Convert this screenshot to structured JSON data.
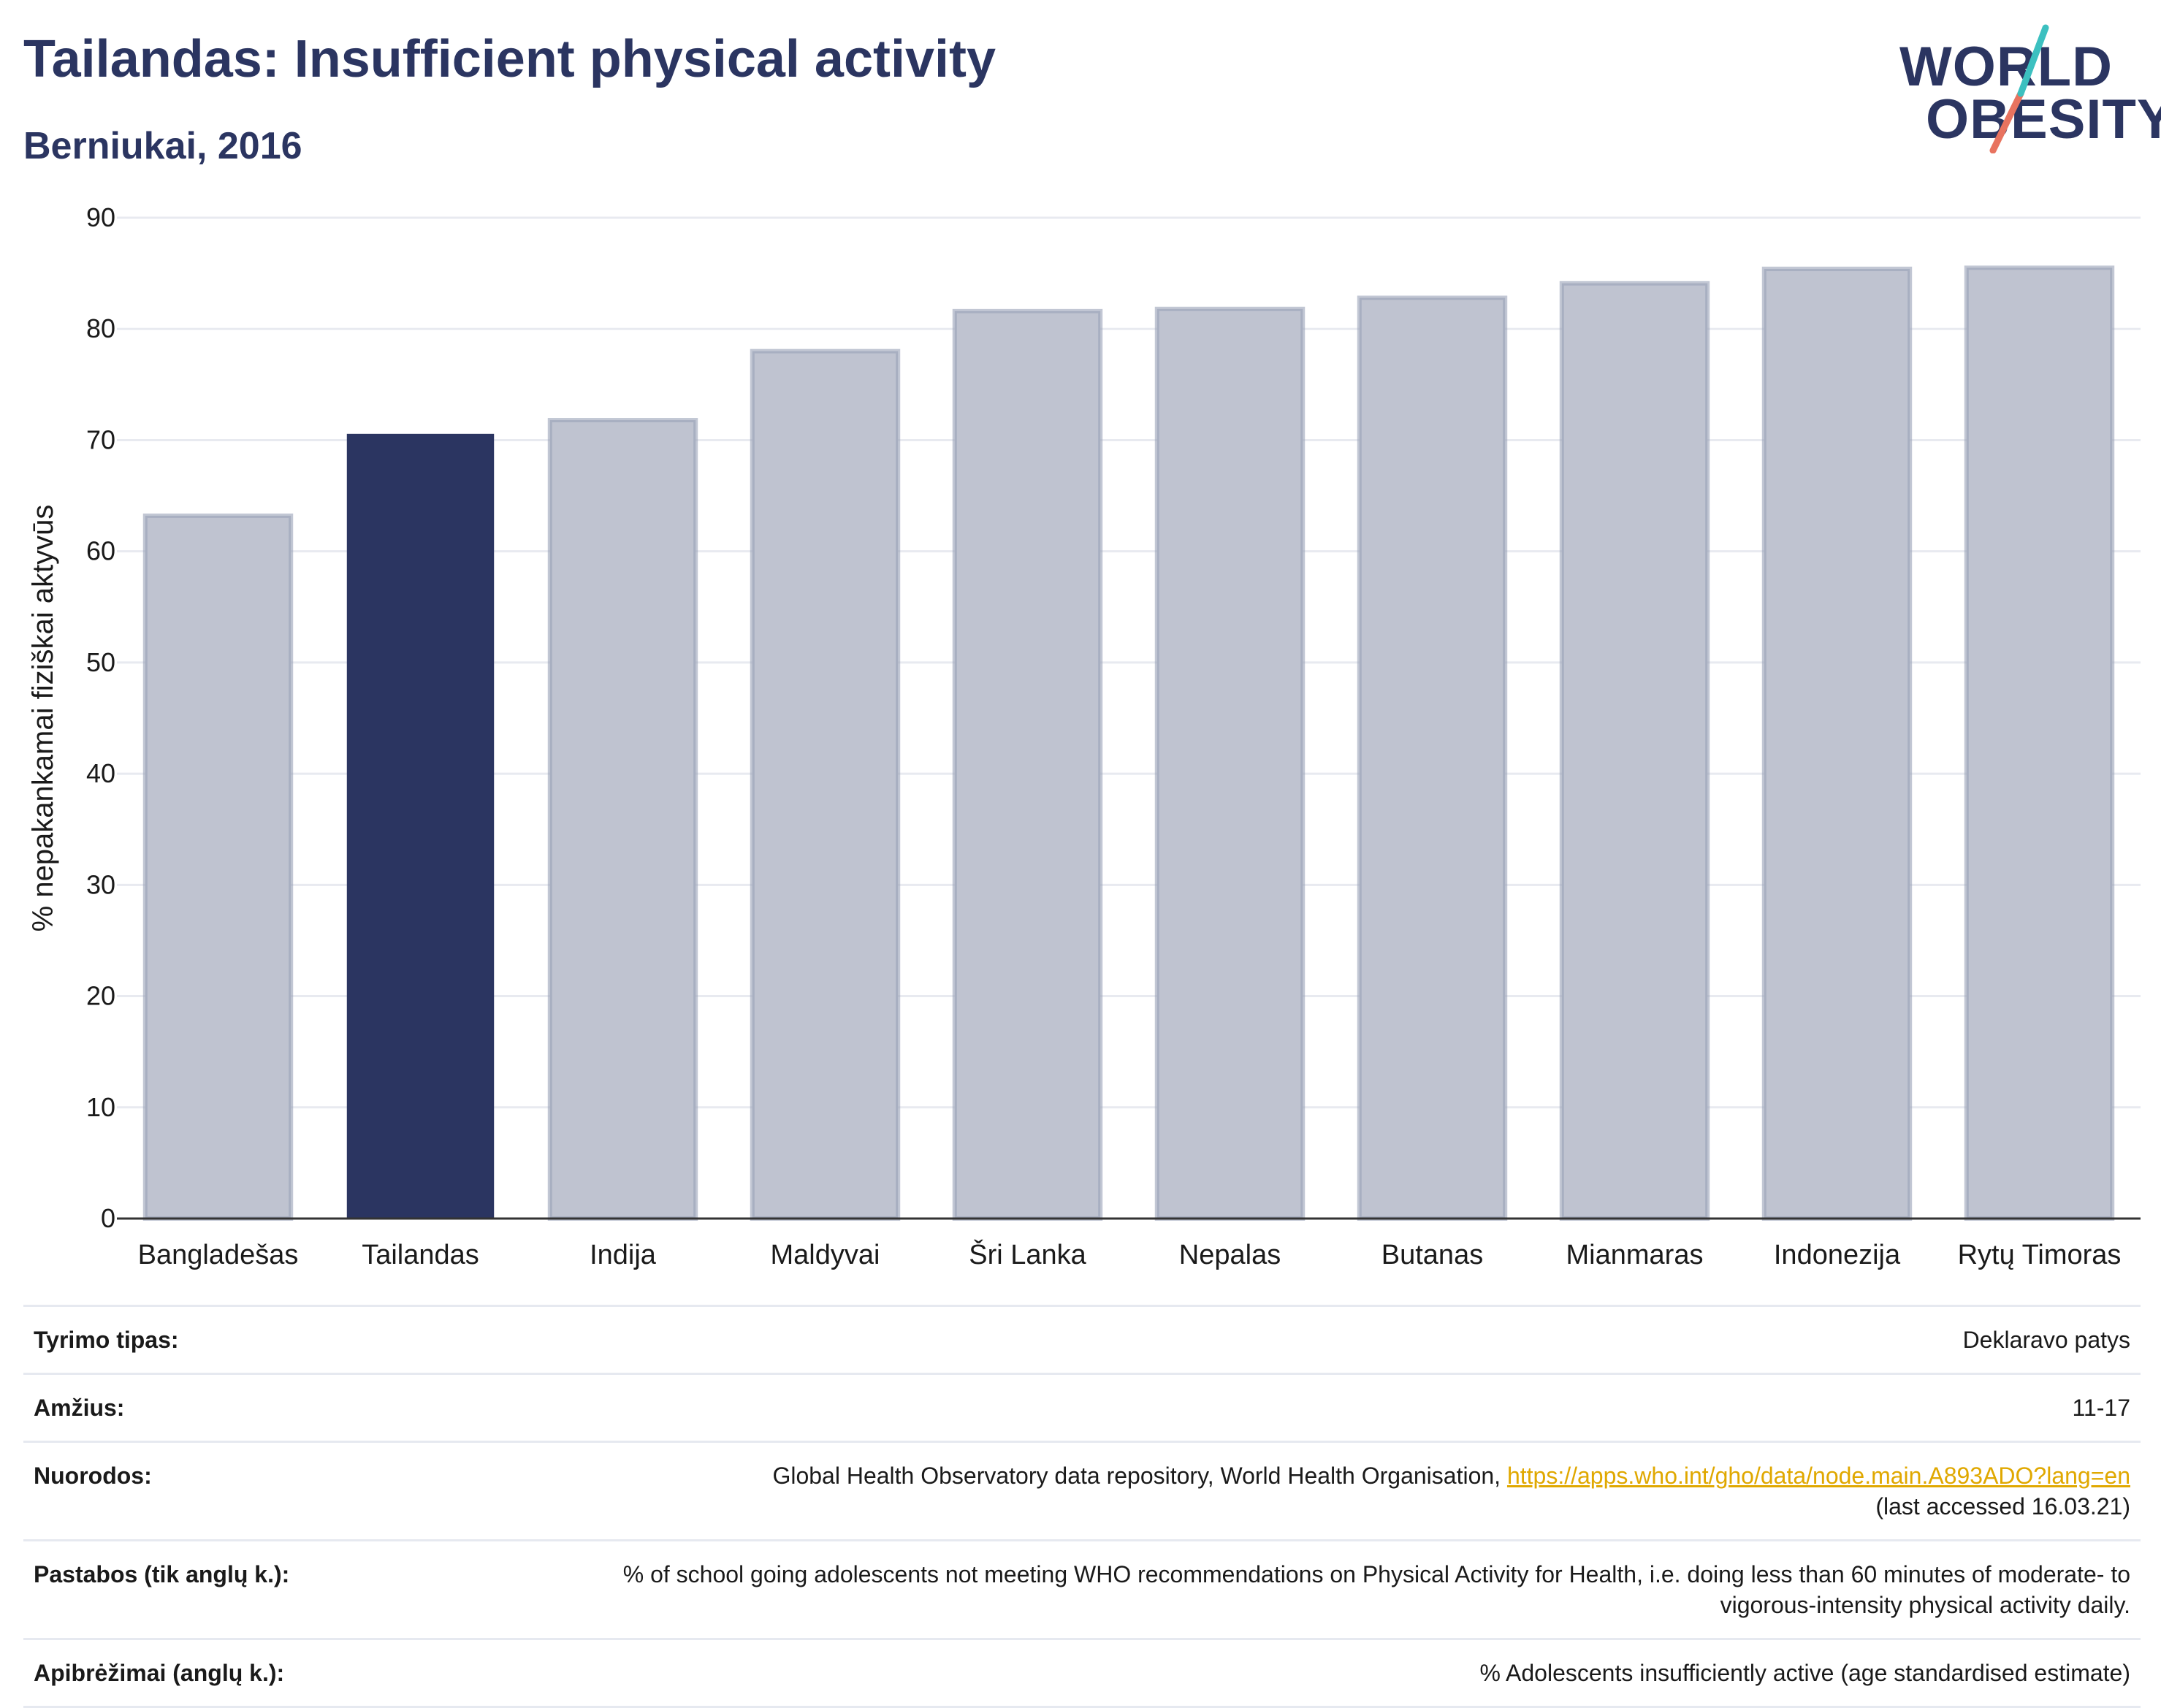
{
  "header": {
    "title": "Tailandas: Insufficient physical activity",
    "subtitle": "Berniukai, 2016"
  },
  "logo": {
    "line1": "WORLD",
    "line2": "OBESITY"
  },
  "colors": {
    "highlight": "#2b3561",
    "other": "#bfc3d0",
    "other_stroke": "#9aa1b8",
    "grid": "#e8eaf0",
    "accent_teal": "#3cc0c0",
    "accent_coral": "#e8735f"
  },
  "chart_data": {
    "type": "bar",
    "title": "Tailandas: Insufficient physical activity",
    "subtitle": "Berniukai, 2016",
    "ylabel": "% nepakankamai fiziškai aktyvūs",
    "xlabel": "",
    "ylim": [
      0,
      90
    ],
    "yticks": [
      0,
      10,
      20,
      30,
      40,
      50,
      60,
      70,
      80,
      90
    ],
    "categories": [
      "Bangladešas",
      "Tailandas",
      "Indija",
      "Maldyvai",
      "Šri Lanka",
      "Nepalas",
      "Butanas",
      "Mianmaras",
      "Indonezija",
      "Rytų Timoras"
    ],
    "values": [
      63.2,
      70.5,
      71.8,
      78.0,
      81.6,
      81.8,
      82.8,
      84.1,
      85.4,
      85.5
    ],
    "highlight": "Tailandas",
    "grid": true
  },
  "info": [
    {
      "label": "Tyrimo tipas:",
      "value": "Deklaravo patys"
    },
    {
      "label": "Amžius:",
      "value": "11-17"
    },
    {
      "label": "Nuorodos:",
      "value": "Global Health Observatory data repository, World Health Organisation, ",
      "link": "https://apps.who.int/gho/data/node.main.A893ADO?lang=en",
      "value2": "(last accessed 16.03.21)"
    },
    {
      "label": "Pastabos (tik anglų k.):",
      "value": "% of school going adolescents not meeting WHO recommendations on Physical Activity for Health, i.e. doing less than 60 minutes of moderate- to vigorous-intensity physical activity daily."
    },
    {
      "label": "Apibrėžimai (anglų k.):",
      "value": "% Adolescents insufficiently active (age standardised estimate)"
    }
  ]
}
